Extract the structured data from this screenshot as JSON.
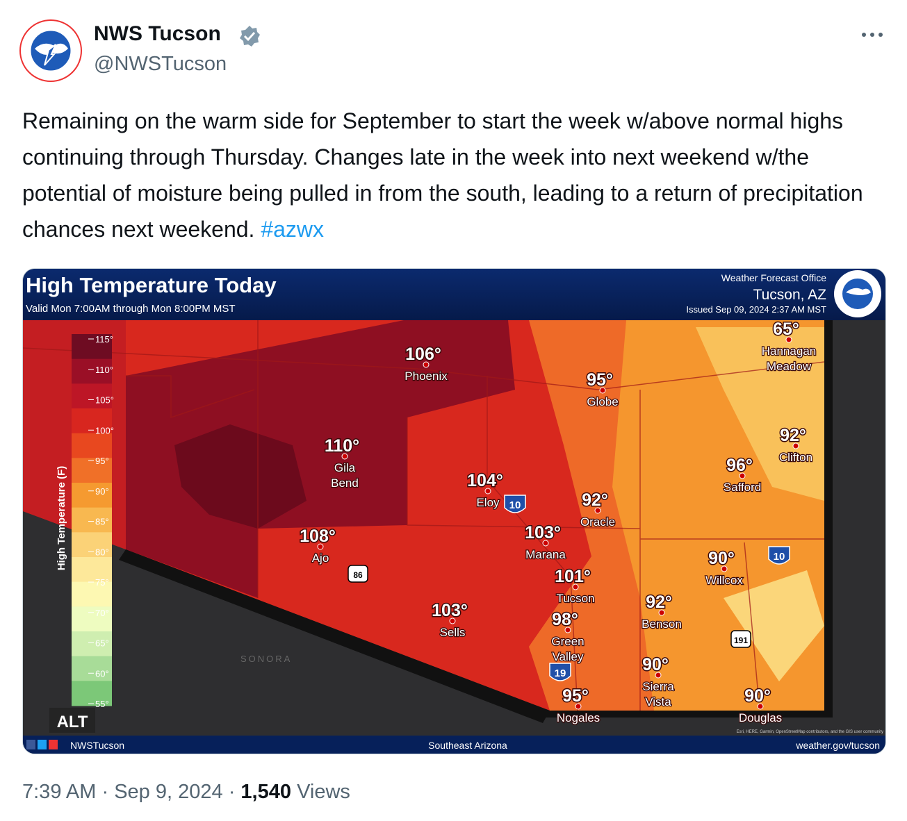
{
  "tweet": {
    "author": {
      "name": "NWS Tucson",
      "handle": "@NWSTucson"
    },
    "text": "Remaining on the warm side for September to start the week w/above normal highs continuing through Thursday. Changes late in the week into next weekend w/the potential of moisture being pulled in from the south, leading to a return of precipitation chances next weekend.",
    "hashtag": "#azwx",
    "image": {
      "title": "High Temperature Today",
      "valid": "Valid Mon 7:00AM through Mon 8:00PM MST",
      "office": "Weather Forecast Office",
      "location": "Tucson, AZ",
      "issued": "Issued Sep 09, 2024 2:37 AM MST",
      "legend_title": "High Temperature (F)",
      "legend_ticks": [
        "115°",
        "110°",
        "105°",
        "100°",
        "95°",
        "90°",
        "85°",
        "80°",
        "75°",
        "70°",
        "65°",
        "60°",
        "55°"
      ],
      "cities": [
        {
          "temp": "106°",
          "name": [
            "Phoenix"
          ]
        },
        {
          "temp": "95°",
          "name": [
            "Globe"
          ]
        },
        {
          "temp": "65°",
          "name": [
            "Hannagan",
            "Meadow"
          ]
        },
        {
          "temp": "92°",
          "name": [
            "Clifton"
          ]
        },
        {
          "temp": "96°",
          "name": [
            "Safford"
          ]
        },
        {
          "temp": "110°",
          "name": [
            "Gila",
            "Bend"
          ]
        },
        {
          "temp": "104°",
          "name": [
            "Eloy"
          ]
        },
        {
          "temp": "92°",
          "name": [
            "Oracle"
          ]
        },
        {
          "temp": "103°",
          "name": [
            "Marana"
          ]
        },
        {
          "temp": "108°",
          "name": [
            "Ajo"
          ]
        },
        {
          "temp": "90°",
          "name": [
            "Willcox"
          ]
        },
        {
          "temp": "101°",
          "name": [
            "Tucson"
          ]
        },
        {
          "temp": "103°",
          "name": [
            "Sells"
          ]
        },
        {
          "temp": "92°",
          "name": [
            "Benson"
          ]
        },
        {
          "temp": "98°",
          "name": [
            "Green",
            "Valley"
          ]
        },
        {
          "temp": "90°",
          "name": [
            "Sierra",
            "Vista"
          ]
        },
        {
          "temp": "95°",
          "name": [
            "Nogales"
          ]
        },
        {
          "temp": "90°",
          "name": [
            "Douglas"
          ]
        }
      ],
      "shields": [
        "10",
        "86",
        "19",
        "191",
        "10"
      ],
      "region_label": "SONORA",
      "alt_badge": "ALT",
      "footer_left": "NWSTucson",
      "footer_center": "Southeast Arizona",
      "footer_right": "weather.gov/tucson",
      "attribution": "Esri, HERE, Garmin, OpenStreetMap contributors, and the GIS user community"
    },
    "time": "7:39 AM",
    "separator": "·",
    "date": "Sep 9, 2024",
    "views_count": "1,540",
    "views_label": "Views"
  }
}
